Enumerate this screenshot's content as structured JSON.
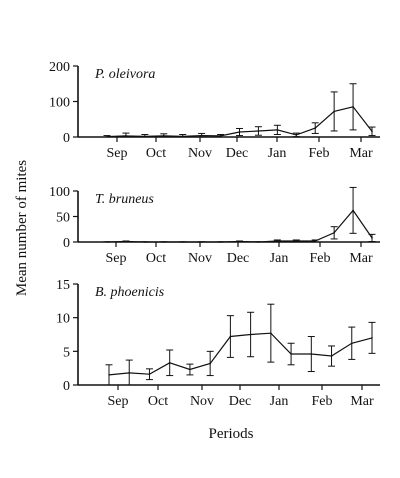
{
  "figure": {
    "ylabel": "Mean number of mites",
    "xlabel": "Periods"
  },
  "chart_data": [
    {
      "type": "line",
      "title": "P. oleivora",
      "xlabel": "",
      "ylabel": "",
      "x_tick_labels": [
        "Sep",
        "Oct",
        "Nov",
        "Dec",
        "Jan",
        "Feb",
        "Mar"
      ],
      "ylim": [
        0,
        200
      ],
      "y_ticks": [
        0,
        100,
        200
      ],
      "series": [
        {
          "values": [
            1,
            3,
            2,
            3,
            2,
            4,
            3,
            14,
            17,
            20,
            6,
            25,
            72,
            85,
            16
          ],
          "errors": [
            3,
            8,
            5,
            6,
            5,
            6,
            4,
            10,
            12,
            13,
            5,
            15,
            55,
            65,
            12
          ]
        }
      ]
    },
    {
      "type": "line",
      "title": "T. bruneus",
      "xlabel": "",
      "ylabel": "",
      "x_tick_labels": [
        "Sep",
        "Oct",
        "Nov",
        "Dec",
        "Jan",
        "Feb",
        "Mar"
      ],
      "ylim": [
        0,
        100
      ],
      "y_ticks": [
        0,
        50,
        100
      ],
      "series": [
        {
          "values": [
            0,
            1,
            0,
            0,
            0,
            0,
            0,
            1,
            0,
            2,
            2,
            2,
            18,
            62,
            8
          ],
          "errors": [
            0.5,
            1,
            0.5,
            0.5,
            0.5,
            0.5,
            0.5,
            1,
            0.5,
            2,
            2,
            2,
            12,
            45,
            7
          ]
        }
      ]
    },
    {
      "type": "line",
      "title": "B. phoenicis",
      "xlabel": "",
      "ylabel": "",
      "x_tick_labels": [
        "Sep",
        "Oct",
        "Nov",
        "Dec",
        "Jan",
        "Feb",
        "Mar"
      ],
      "ylim": [
        0,
        15
      ],
      "y_ticks": [
        0,
        5,
        10,
        15
      ],
      "series": [
        {
          "values": [
            1.5,
            1.8,
            1.6,
            3.3,
            2.3,
            3.2,
            7.2,
            7.5,
            7.7,
            4.6,
            4.6,
            4.3,
            6.2,
            7.0
          ],
          "errors": [
            1.5,
            1.9,
            0.8,
            1.9,
            0.8,
            1.8,
            3.1,
            3.3,
            4.3,
            1.6,
            2.6,
            1.5,
            2.4,
            2.3
          ]
        }
      ]
    }
  ]
}
